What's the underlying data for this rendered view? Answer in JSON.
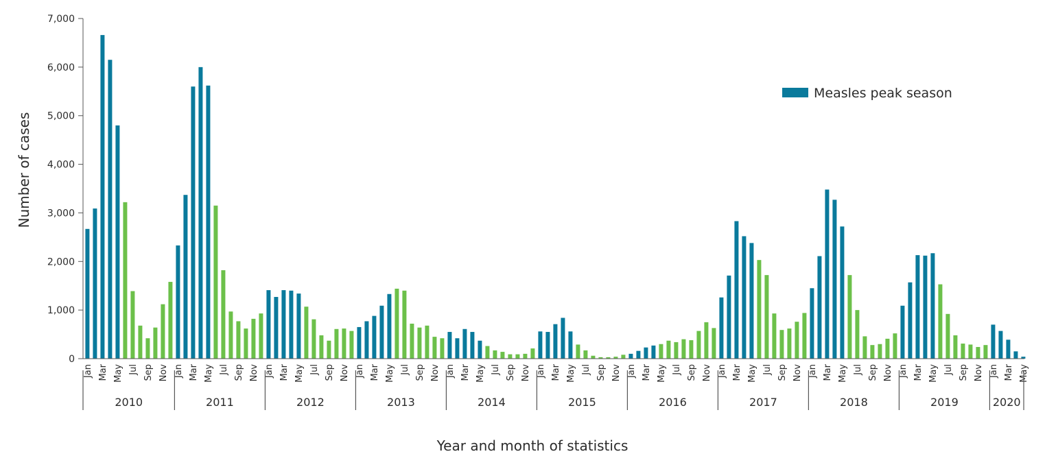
{
  "chart_data": {
    "type": "bar",
    "ylabel": "Number of cases",
    "xlabel": "Year and month of statistics",
    "ylim": [
      0,
      7000
    ],
    "yticks": [
      "0",
      "1,000",
      "2,000",
      "3,000",
      "4,000",
      "5,000",
      "6,000",
      "7,000"
    ],
    "grid": false,
    "legend": {
      "label": "Measles peak season",
      "color": "#0a7a9c",
      "position": "top-right"
    },
    "colors": {
      "peak": "#0a7a9c",
      "off_peak": "#6cc04a"
    },
    "month_tick_labels": [
      "Jan",
      "Mar",
      "May",
      "Jul",
      "Sep",
      "Nov"
    ],
    "series": [
      {
        "year": "2010",
        "months": [
          "Jan",
          "Feb",
          "Mar",
          "Apr",
          "May",
          "Jun",
          "Jul",
          "Aug",
          "Sep",
          "Oct",
          "Nov",
          "Dec"
        ],
        "values": [
          2670,
          3090,
          6660,
          6150,
          4800,
          3220,
          1390,
          680,
          420,
          640,
          1120,
          1580
        ],
        "peak": [
          true,
          true,
          true,
          true,
          true,
          false,
          false,
          false,
          false,
          false,
          false,
          false
        ]
      },
      {
        "year": "2011",
        "months": [
          "Jan",
          "Feb",
          "Mar",
          "Apr",
          "May",
          "Jun",
          "Jul",
          "Aug",
          "Sep",
          "Oct",
          "Nov",
          "Dec"
        ],
        "values": [
          2330,
          3370,
          5600,
          6000,
          5620,
          3150,
          1820,
          970,
          770,
          620,
          820,
          930
        ],
        "peak": [
          true,
          true,
          true,
          true,
          true,
          false,
          false,
          false,
          false,
          false,
          false,
          false
        ]
      },
      {
        "year": "2012",
        "months": [
          "Jan",
          "Feb",
          "Mar",
          "Apr",
          "May",
          "Jun",
          "Jul",
          "Aug",
          "Sep",
          "Oct",
          "Nov",
          "Dec"
        ],
        "values": [
          1410,
          1270,
          1410,
          1400,
          1340,
          1070,
          810,
          480,
          370,
          610,
          620,
          570
        ],
        "peak": [
          true,
          true,
          true,
          true,
          true,
          false,
          false,
          false,
          false,
          false,
          false,
          false
        ]
      },
      {
        "year": "2013",
        "months": [
          "Jan",
          "Feb",
          "Mar",
          "Apr",
          "May",
          "Jun",
          "Jul",
          "Aug",
          "Sep",
          "Oct",
          "Nov",
          "Dec"
        ],
        "values": [
          650,
          770,
          880,
          1090,
          1330,
          1440,
          1400,
          720,
          640,
          680,
          450,
          420
        ],
        "peak": [
          true,
          true,
          true,
          true,
          true,
          false,
          false,
          false,
          false,
          false,
          false,
          false
        ]
      },
      {
        "year": "2014",
        "months": [
          "Jan",
          "Feb",
          "Mar",
          "Apr",
          "May",
          "Jun",
          "Jul",
          "Aug",
          "Sep",
          "Oct",
          "Nov",
          "Dec"
        ],
        "values": [
          550,
          420,
          610,
          550,
          370,
          260,
          170,
          140,
          90,
          90,
          100,
          210
        ],
        "peak": [
          true,
          true,
          true,
          true,
          true,
          false,
          false,
          false,
          false,
          false,
          false,
          false
        ]
      },
      {
        "year": "2015",
        "months": [
          "Jan",
          "Feb",
          "Mar",
          "Apr",
          "May",
          "Jun",
          "Jul",
          "Aug",
          "Sep",
          "Oct",
          "Nov",
          "Dec"
        ],
        "values": [
          560,
          550,
          710,
          840,
          560,
          290,
          170,
          60,
          30,
          30,
          40,
          80
        ],
        "peak": [
          true,
          true,
          true,
          true,
          true,
          false,
          false,
          false,
          false,
          false,
          false,
          false
        ]
      },
      {
        "year": "2016",
        "months": [
          "Jan",
          "Feb",
          "Mar",
          "Apr",
          "May",
          "Jun",
          "Jul",
          "Aug",
          "Sep",
          "Oct",
          "Nov",
          "Dec"
        ],
        "values": [
          100,
          160,
          230,
          270,
          300,
          370,
          340,
          400,
          380,
          570,
          750,
          630
        ],
        "peak": [
          true,
          true,
          true,
          true,
          false,
          false,
          false,
          false,
          false,
          false,
          false,
          false
        ]
      },
      {
        "year": "2017",
        "months": [
          "Jan",
          "Feb",
          "Mar",
          "Apr",
          "May",
          "Jun",
          "Jul",
          "Aug",
          "Sep",
          "Oct",
          "Nov",
          "Dec"
        ],
        "values": [
          1260,
          1710,
          2830,
          2520,
          2380,
          2030,
          1720,
          930,
          590,
          620,
          760,
          940
        ],
        "peak": [
          true,
          true,
          true,
          true,
          true,
          false,
          false,
          false,
          false,
          false,
          false,
          false
        ]
      },
      {
        "year": "2018",
        "months": [
          "Jan",
          "Feb",
          "Mar",
          "Apr",
          "May",
          "Jun",
          "Jul",
          "Aug",
          "Sep",
          "Oct",
          "Nov",
          "Dec"
        ],
        "values": [
          1450,
          2110,
          3480,
          3270,
          2720,
          1720,
          1000,
          460,
          280,
          300,
          410,
          520
        ],
        "peak": [
          true,
          true,
          true,
          true,
          true,
          false,
          false,
          false,
          false,
          false,
          false,
          false
        ]
      },
      {
        "year": "2019",
        "months": [
          "Jan",
          "Feb",
          "Mar",
          "Apr",
          "May",
          "Jun",
          "Jul",
          "Aug",
          "Sep",
          "Oct",
          "Nov",
          "Dec"
        ],
        "values": [
          1090,
          1570,
          2130,
          2120,
          2170,
          1530,
          920,
          480,
          310,
          290,
          240,
          280
        ],
        "peak": [
          true,
          true,
          true,
          true,
          true,
          false,
          false,
          false,
          false,
          false,
          false,
          false
        ]
      },
      {
        "year": "2020",
        "months": [
          "Jan",
          "Feb",
          "Mar",
          "Apr",
          "May"
        ],
        "values": [
          700,
          570,
          390,
          150,
          40
        ],
        "peak": [
          true,
          true,
          true,
          true,
          true
        ]
      }
    ]
  }
}
